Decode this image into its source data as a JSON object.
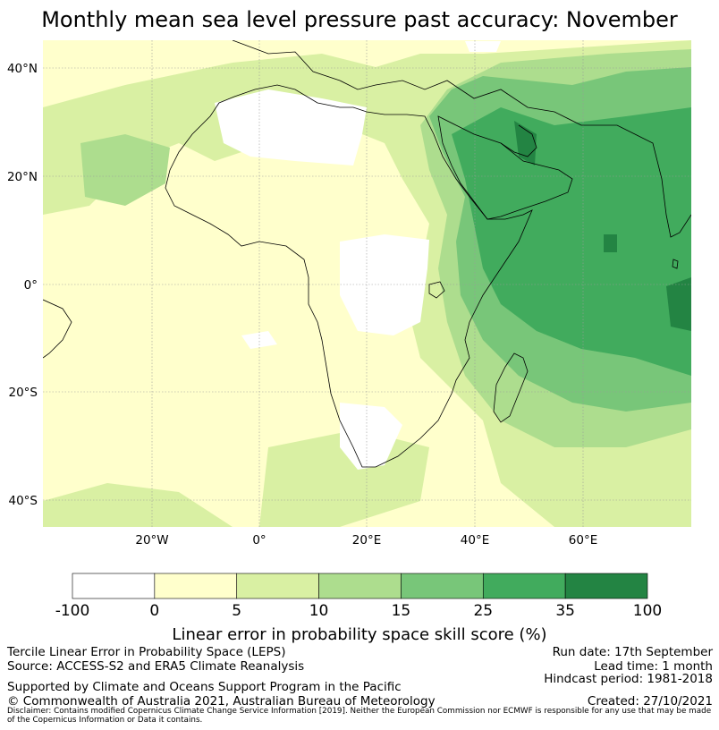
{
  "title": "Monthly mean sea level pressure past accuracy: November",
  "map": {
    "lat_ticks": [
      "40°N",
      "20°N",
      "0°",
      "20°S",
      "40°S"
    ],
    "lon_ticks": [
      "20°W",
      "0°",
      "20°E",
      "40°E",
      "60°E"
    ],
    "extent": {
      "lon": [
        -40,
        80
      ],
      "lat": [
        -45,
        45
      ]
    }
  },
  "colorbar": {
    "label": "Linear error in probability space skill score (%)",
    "bins": [
      {
        "from": "-100",
        "to": "0",
        "color": "#ffffff"
      },
      {
        "from": "0",
        "to": "5",
        "color": "#ffffcc"
      },
      {
        "from": "5",
        "to": "10",
        "color": "#d9f0a3"
      },
      {
        "from": "10",
        "to": "15",
        "color": "#addd8e"
      },
      {
        "from": "15",
        "to": "25",
        "color": "#78c679"
      },
      {
        "from": "25",
        "to": "35",
        "color": "#41ab5d"
      },
      {
        "from": "35",
        "to": "100",
        "color": "#238443"
      }
    ],
    "ticks": [
      "-100",
      "0",
      "5",
      "10",
      "15",
      "25",
      "35",
      "100"
    ]
  },
  "footer": {
    "leps": "Tercile Linear Error in Probability Space (LEPS)",
    "source": "Source: ACCESS-S2 and ERA5 Climate Reanalysis",
    "support": "Supported by Climate and Oceans Support Program in the Pacific",
    "copyright": "© Commonwealth of Australia 2021, Australian Bureau of Meteorology",
    "run_date": "Run date: 17th September",
    "lead_time": "Lead time: 1 month",
    "hindcast": "Hindcast period: 1981-2018",
    "created": "Created: 27/10/2021",
    "disclaimer": "Disclaimer: Contains modified Copernicus Climate Change Service Information [2019]. Neither the European Commission nor ECMWF is responsible for any use that may be made of the Copernicus Information or Data it contains."
  }
}
